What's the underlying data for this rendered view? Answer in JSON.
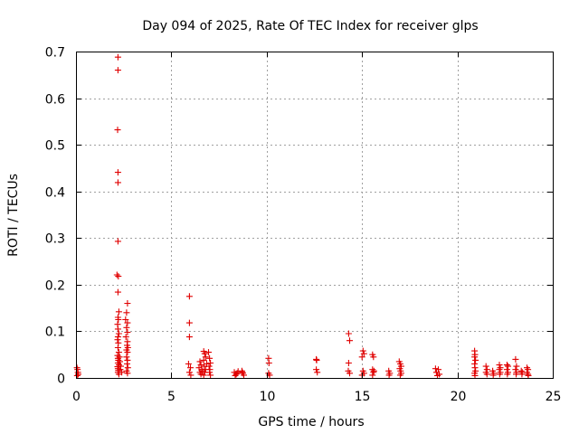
{
  "chart_data": {
    "type": "scatter",
    "title": "Day 094 of 2025, Rate Of TEC Index for receiver glps",
    "xlabel": "GPS time / hours",
    "ylabel": "ROTI / TECUs",
    "xlim": [
      0,
      25
    ],
    "ylim": [
      0,
      0.7
    ],
    "xticks": [
      0,
      5,
      10,
      15,
      20,
      25
    ],
    "yticks": [
      0,
      0.1,
      0.2,
      0.3,
      0.4,
      0.5,
      0.6,
      0.7
    ],
    "xtick_labels": [
      "0",
      "5",
      "10",
      "15",
      "20",
      "25"
    ],
    "ytick_labels": [
      "0",
      "0.1",
      "0.2",
      "0.3",
      "0.4",
      "0.5",
      "0.6",
      "0.7"
    ],
    "grid": true,
    "marker": "+",
    "color": "#e00000",
    "series": [
      {
        "name": "ROTI",
        "points": [
          [
            0.05,
            0.022
          ],
          [
            0.08,
            0.018
          ],
          [
            0.1,
            0.012
          ],
          [
            0.12,
            0.008
          ],
          [
            0.06,
            0.005
          ],
          [
            2.2,
            0.688
          ],
          [
            2.2,
            0.66
          ],
          [
            2.18,
            0.532
          ],
          [
            2.2,
            0.441
          ],
          [
            2.2,
            0.419
          ],
          [
            2.2,
            0.293
          ],
          [
            2.15,
            0.221
          ],
          [
            2.22,
            0.218
          ],
          [
            2.2,
            0.184
          ],
          [
            2.25,
            0.142
          ],
          [
            2.2,
            0.13
          ],
          [
            2.22,
            0.125
          ],
          [
            2.18,
            0.115
          ],
          [
            2.2,
            0.105
          ],
          [
            2.25,
            0.095
          ],
          [
            2.2,
            0.088
          ],
          [
            2.18,
            0.082
          ],
          [
            2.22,
            0.075
          ],
          [
            2.2,
            0.065
          ],
          [
            2.25,
            0.055
          ],
          [
            2.18,
            0.048
          ],
          [
            2.2,
            0.042
          ],
          [
            2.22,
            0.038
          ],
          [
            2.2,
            0.032
          ],
          [
            2.25,
            0.028
          ],
          [
            2.18,
            0.024
          ],
          [
            2.2,
            0.02
          ],
          [
            2.22,
            0.016
          ],
          [
            2.2,
            0.012
          ],
          [
            2.25,
            0.008
          ],
          [
            2.3,
            0.035
          ],
          [
            2.35,
            0.025
          ],
          [
            2.28,
            0.045
          ],
          [
            2.32,
            0.018
          ],
          [
            2.4,
            0.012
          ],
          [
            2.7,
            0.16
          ],
          [
            2.65,
            0.14
          ],
          [
            2.6,
            0.125
          ],
          [
            2.7,
            0.118
          ],
          [
            2.65,
            0.108
          ],
          [
            2.7,
            0.098
          ],
          [
            2.62,
            0.088
          ],
          [
            2.7,
            0.078
          ],
          [
            2.68,
            0.07
          ],
          [
            2.72,
            0.065
          ],
          [
            2.65,
            0.06
          ],
          [
            2.7,
            0.055
          ],
          [
            2.65,
            0.045
          ],
          [
            2.7,
            0.038
          ],
          [
            2.68,
            0.03
          ],
          [
            2.72,
            0.022
          ],
          [
            2.65,
            0.015
          ],
          [
            2.7,
            0.01
          ],
          [
            5.95,
            0.175
          ],
          [
            5.95,
            0.118
          ],
          [
            5.95,
            0.088
          ],
          [
            5.9,
            0.03
          ],
          [
            6.0,
            0.022
          ],
          [
            5.95,
            0.012
          ],
          [
            6.02,
            0.006
          ],
          [
            6.5,
            0.035
          ],
          [
            6.55,
            0.028
          ],
          [
            6.45,
            0.022
          ],
          [
            6.6,
            0.018
          ],
          [
            6.5,
            0.012
          ],
          [
            6.55,
            0.008
          ],
          [
            6.62,
            0.015
          ],
          [
            6.7,
            0.057
          ],
          [
            6.75,
            0.052
          ],
          [
            6.8,
            0.045
          ],
          [
            6.7,
            0.038
          ],
          [
            6.85,
            0.03
          ],
          [
            6.72,
            0.025
          ],
          [
            6.8,
            0.018
          ],
          [
            6.75,
            0.012
          ],
          [
            6.7,
            0.006
          ],
          [
            6.95,
            0.055
          ],
          [
            7.0,
            0.042
          ],
          [
            7.05,
            0.032
          ],
          [
            6.98,
            0.025
          ],
          [
            7.02,
            0.018
          ],
          [
            7.0,
            0.012
          ],
          [
            7.05,
            0.006
          ],
          [
            8.3,
            0.012
          ],
          [
            8.4,
            0.008
          ],
          [
            8.5,
            0.014
          ],
          [
            8.35,
            0.005
          ],
          [
            8.45,
            0.01
          ],
          [
            8.7,
            0.015
          ],
          [
            8.75,
            0.01
          ],
          [
            8.8,
            0.006
          ],
          [
            8.72,
            0.012
          ],
          [
            10.1,
            0.042
          ],
          [
            10.12,
            0.032
          ],
          [
            10.1,
            0.01
          ],
          [
            10.15,
            0.006
          ],
          [
            12.6,
            0.04
          ],
          [
            12.62,
            0.038
          ],
          [
            12.6,
            0.018
          ],
          [
            12.65,
            0.012
          ],
          [
            14.3,
            0.095
          ],
          [
            14.35,
            0.08
          ],
          [
            14.3,
            0.032
          ],
          [
            14.28,
            0.015
          ],
          [
            14.35,
            0.01
          ],
          [
            15.05,
            0.058
          ],
          [
            15.1,
            0.052
          ],
          [
            15.0,
            0.045
          ],
          [
            15.05,
            0.015
          ],
          [
            15.1,
            0.01
          ],
          [
            15.0,
            0.006
          ],
          [
            15.55,
            0.05
          ],
          [
            15.6,
            0.045
          ],
          [
            15.55,
            0.018
          ],
          [
            15.6,
            0.012
          ],
          [
            15.55,
            0.006
          ],
          [
            15.62,
            0.015
          ],
          [
            16.4,
            0.015
          ],
          [
            16.45,
            0.01
          ],
          [
            16.42,
            0.006
          ],
          [
            16.95,
            0.035
          ],
          [
            17.0,
            0.03
          ],
          [
            17.05,
            0.025
          ],
          [
            16.98,
            0.02
          ],
          [
            17.02,
            0.015
          ],
          [
            17.05,
            0.01
          ],
          [
            17.0,
            0.006
          ],
          [
            18.85,
            0.02
          ],
          [
            19.0,
            0.018
          ],
          [
            18.9,
            0.012
          ],
          [
            19.05,
            0.008
          ],
          [
            18.95,
            0.005
          ],
          [
            20.9,
            0.058
          ],
          [
            20.92,
            0.05
          ],
          [
            20.9,
            0.045
          ],
          [
            20.95,
            0.038
          ],
          [
            20.9,
            0.03
          ],
          [
            20.92,
            0.022
          ],
          [
            20.95,
            0.015
          ],
          [
            20.9,
            0.01
          ],
          [
            20.92,
            0.005
          ],
          [
            21.5,
            0.025
          ],
          [
            21.55,
            0.018
          ],
          [
            21.5,
            0.012
          ],
          [
            21.55,
            0.008
          ],
          [
            21.85,
            0.015
          ],
          [
            21.9,
            0.01
          ],
          [
            21.88,
            0.006
          ],
          [
            22.2,
            0.028
          ],
          [
            22.25,
            0.022
          ],
          [
            22.2,
            0.018
          ],
          [
            22.25,
            0.012
          ],
          [
            22.22,
            0.008
          ],
          [
            22.6,
            0.028
          ],
          [
            22.65,
            0.025
          ],
          [
            22.6,
            0.018
          ],
          [
            22.65,
            0.012
          ],
          [
            22.62,
            0.008
          ],
          [
            23.05,
            0.04
          ],
          [
            23.1,
            0.025
          ],
          [
            23.05,
            0.018
          ],
          [
            23.1,
            0.012
          ],
          [
            23.08,
            0.008
          ],
          [
            23.35,
            0.015
          ],
          [
            23.4,
            0.012
          ],
          [
            23.38,
            0.008
          ],
          [
            23.65,
            0.022
          ],
          [
            23.7,
            0.018
          ],
          [
            23.65,
            0.012
          ],
          [
            23.7,
            0.008
          ],
          [
            23.72,
            0.005
          ]
        ]
      }
    ]
  }
}
